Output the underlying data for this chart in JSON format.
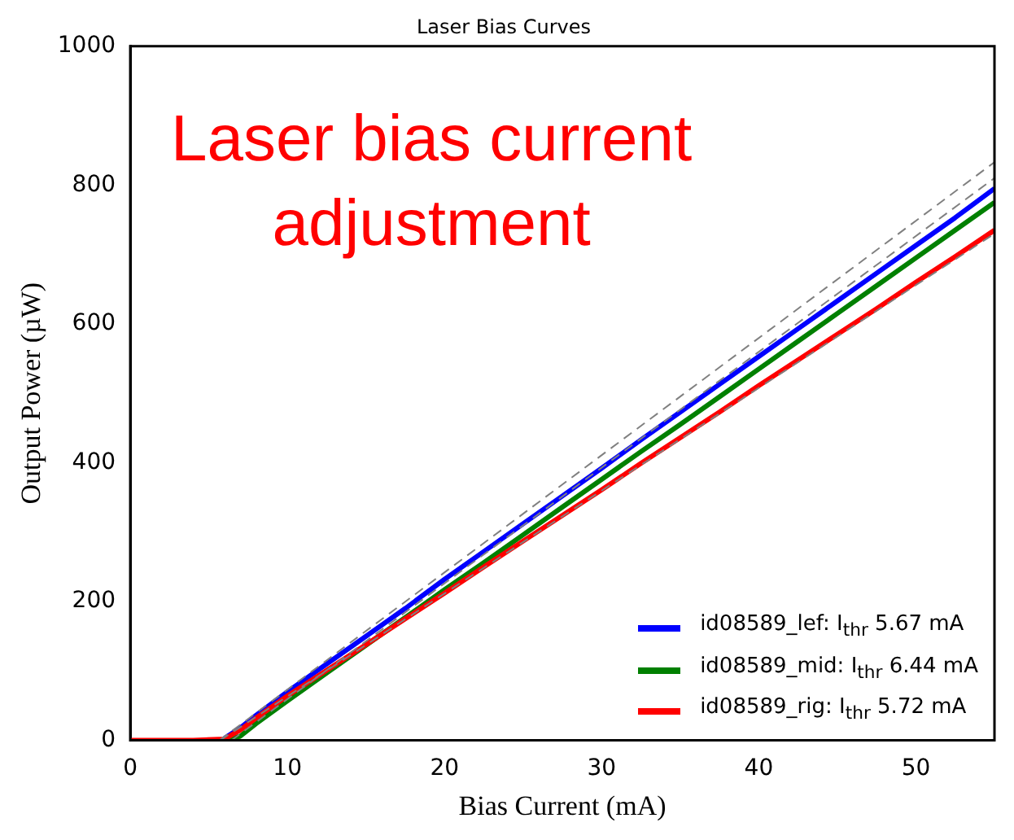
{
  "chart_data": {
    "type": "line",
    "title": "Laser Bias Curves",
    "xlabel": "Bias Current (mA)",
    "ylabel": "Output Power (µW)",
    "annotations": [
      "Laser bias current adjustment"
    ],
    "x": [
      0,
      2,
      4,
      6,
      7,
      8,
      10,
      12.5,
      15,
      17.5,
      20,
      22.5,
      25,
      27.5,
      30,
      32.5,
      35,
      37.5,
      40,
      42.5,
      45,
      47.5,
      50,
      52.5,
      55
    ],
    "series": [
      {
        "name": "id08589_lef: I$_{thr}$ 5.67 mA",
        "color": "#0000ff",
        "values": [
          null,
          null,
          null,
          3,
          18,
          36,
          70,
          110,
          150,
          190,
          232,
          272,
          312,
          352,
          392,
          433,
          473,
          513,
          553,
          593,
          633,
          673,
          713,
          753,
          795
        ]
      },
      {
        "name": "id08589_mid: I$_{thr}$ 6.44 mA",
        "color": "#008000",
        "values": [
          null,
          null,
          null,
          0,
          6,
          24,
          57,
          97,
          137,
          177,
          217,
          256,
          296,
          336,
          376,
          416,
          455,
          495,
          535,
          575,
          615,
          655,
          695,
          735,
          775
        ]
      },
      {
        "name": "id08589_rig: I$_{thr}$ 5.72 mA",
        "color": "#ff0000",
        "values": [
          0,
          0,
          0,
          2,
          15,
          32,
          64,
          101,
          138,
          175,
          212,
          250,
          287,
          324,
          361,
          399,
          436,
          473,
          511,
          548,
          585,
          622,
          660,
          697,
          735
        ]
      },
      {
        "color": "#808080",
        "line_style": "dashed",
        "x": [
          5.67,
          55
        ],
        "values": [
          0,
          833
        ]
      },
      {
        "color": "#808080",
        "line_style": "dashed",
        "x": [
          6.44,
          55
        ],
        "values": [
          0,
          810
        ]
      },
      {
        "color": "#808080",
        "line_style": "dashed",
        "x": [
          5.72,
          55
        ],
        "values": [
          0,
          730
        ]
      }
    ],
    "xlim": [
      0,
      55
    ],
    "xticks": [
      0,
      10,
      20,
      30,
      40,
      50
    ],
    "ylim": [
      0,
      1000
    ],
    "yticks": [
      0,
      200,
      400,
      600,
      800,
      1000
    ],
    "grid": false,
    "legend": "bottom right",
    "marker": "none",
    "line_style": "solid"
  }
}
